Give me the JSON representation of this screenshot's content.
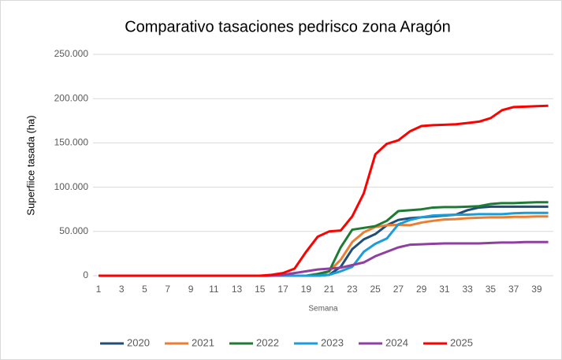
{
  "chart_data": {
    "type": "line",
    "title": "Comparativo tasaciones pedrisco zona Aragón",
    "y_label": "Superfiice tasada (ha)",
    "x_label": "Semana",
    "categories": [
      "1",
      null,
      "3",
      null,
      "5",
      null,
      "7",
      null,
      "9",
      null,
      "11",
      null,
      "13",
      null,
      "15",
      null,
      "17",
      null,
      "19",
      null,
      "21",
      null,
      "23",
      null,
      "25",
      null,
      "27",
      null,
      "29",
      null,
      "31",
      null,
      "33",
      null,
      "35",
      null,
      "37",
      null,
      "39",
      null
    ],
    "ylim": [
      0,
      250000
    ],
    "yticks": [
      0,
      {
        "value": 50000,
        "label": "50.000"
      },
      {
        "value": 100000,
        "label": "100.000"
      },
      {
        "value": 150000,
        "label": "150.000"
      },
      {
        "value": 200000,
        "label": "200.000"
      },
      {
        "value": 250000,
        "label": "250.000"
      }
    ],
    "grid": true,
    "legend": "bottom",
    "series": [
      {
        "name": "2020",
        "color": "#1f4e79",
        "values": [
          0,
          0,
          0,
          0,
          0,
          0,
          0,
          0,
          0,
          0,
          0,
          0,
          0,
          0,
          0,
          0,
          0,
          0,
          0,
          0,
          1000,
          10000,
          30000,
          41000,
          47000,
          57000,
          63000,
          65000,
          66000,
          67000,
          68000,
          69000,
          74000,
          77000,
          78000,
          78000,
          78000,
          78000,
          78000,
          78000
        ]
      },
      {
        "name": "2021",
        "color": "#ed7d31",
        "values": [
          0,
          0,
          0,
          0,
          0,
          0,
          0,
          0,
          0,
          0,
          0,
          0,
          0,
          0,
          0,
          0,
          0,
          0,
          0,
          0,
          5000,
          18000,
          38000,
          49000,
          55000,
          57000,
          57500,
          57000,
          60000,
          62000,
          63500,
          64000,
          65000,
          65500,
          66000,
          66000,
          66500,
          66500,
          67000,
          67000
        ]
      },
      {
        "name": "2022",
        "color": "#1e7b34",
        "values": [
          0,
          0,
          0,
          0,
          0,
          0,
          0,
          0,
          0,
          0,
          0,
          0,
          0,
          0,
          0,
          0,
          0,
          0,
          0,
          2000,
          5000,
          32000,
          52000,
          54000,
          56000,
          62000,
          73000,
          74000,
          75000,
          77000,
          77500,
          77500,
          78000,
          78500,
          81000,
          82000,
          82000,
          82500,
          83000,
          83000
        ]
      },
      {
        "name": "2023",
        "color": "#1a9ed9",
        "values": [
          0,
          0,
          0,
          0,
          0,
          0,
          0,
          0,
          0,
          0,
          0,
          0,
          0,
          0,
          0,
          0,
          0,
          0,
          0,
          0,
          1000,
          5000,
          10000,
          27000,
          36000,
          42000,
          58000,
          63000,
          66000,
          68000,
          68500,
          69000,
          69000,
          69500,
          69500,
          69500,
          70500,
          71000,
          71000,
          71000
        ]
      },
      {
        "name": "2024",
        "color": "#8e3fa0",
        "values": [
          0,
          0,
          0,
          0,
          0,
          0,
          0,
          0,
          0,
          0,
          0,
          0,
          0,
          0,
          0,
          0,
          1000,
          3000,
          5000,
          7000,
          8000,
          9000,
          12000,
          15000,
          22000,
          27000,
          32000,
          35000,
          35500,
          36000,
          36500,
          36500,
          36500,
          36500,
          37000,
          37500,
          37500,
          38000,
          38000,
          38000
        ]
      },
      {
        "name": "2025",
        "color": "#ff0000",
        "values": [
          0,
          0,
          0,
          0,
          0,
          0,
          0,
          0,
          0,
          0,
          0,
          0,
          0,
          0,
          0,
          1000,
          3000,
          8000,
          27000,
          44000,
          50000,
          51000,
          67000,
          93000,
          137000,
          149000,
          153000,
          163000,
          169000,
          170000,
          170500,
          171000,
          172500,
          174000,
          178000,
          187000,
          190500,
          191000,
          191500,
          192000
        ]
      }
    ]
  }
}
